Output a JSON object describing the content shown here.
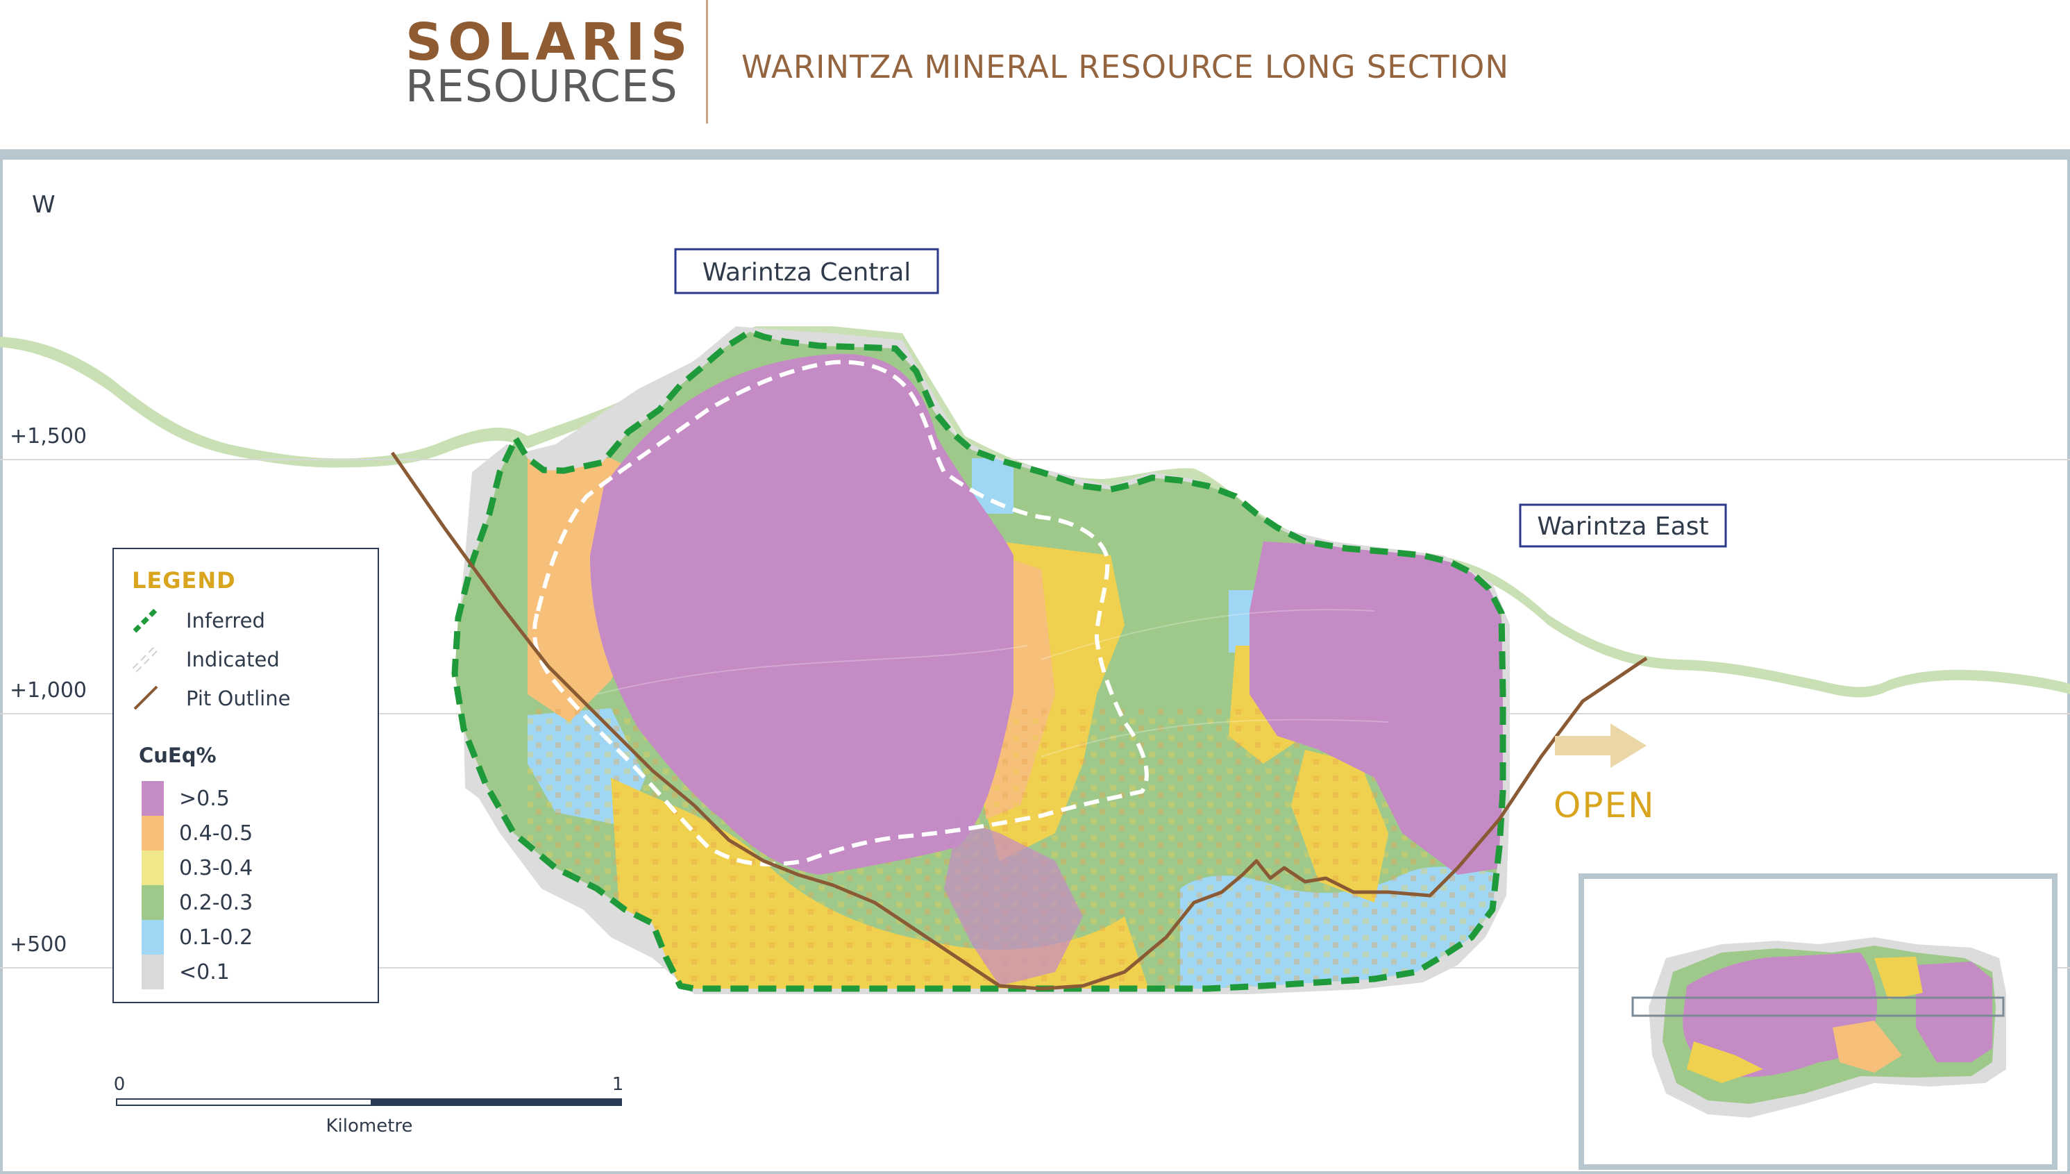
{
  "header": {
    "brand_main": "SOLARIS",
    "brand_sub": "RESOURCES",
    "title": "WARINTZA MINERAL RESOURCE LONG SECTION"
  },
  "section": {
    "direction": "W",
    "elevations": [
      "+1,500",
      "+1,000",
      "+500"
    ],
    "label_central": "Warintza Central",
    "label_east": "Warintza East",
    "open_label": "OPEN"
  },
  "legend": {
    "title": "LEGEND",
    "inferred": "Inferred",
    "indicated": "Indicated",
    "pit": "Pit Outline",
    "scale_title": "CuEq%",
    "grades": [
      {
        "label": ">0.5",
        "color": "#c58bc5"
      },
      {
        "label": "0.4-0.5",
        "color": "#f6c07a"
      },
      {
        "label": "0.3-0.4",
        "color": "#f0e68a"
      },
      {
        "label": "0.2-0.3",
        "color": "#9fc98a"
      },
      {
        "label": "0.1-0.2",
        "color": "#9fd6f3"
      },
      {
        "label": "<0.1",
        "color": "#d9d9d9"
      }
    ]
  },
  "scalebar": {
    "start": "0",
    "end": "1",
    "unit": "Kilometre"
  },
  "colors": {
    "inferred": "#1f9a3b",
    "indicated": "#ffffff",
    "pit": "#8a5a34",
    "topography": "#c9dfb4",
    "accent": "#d9a51f",
    "brand": "#8f5b33"
  }
}
